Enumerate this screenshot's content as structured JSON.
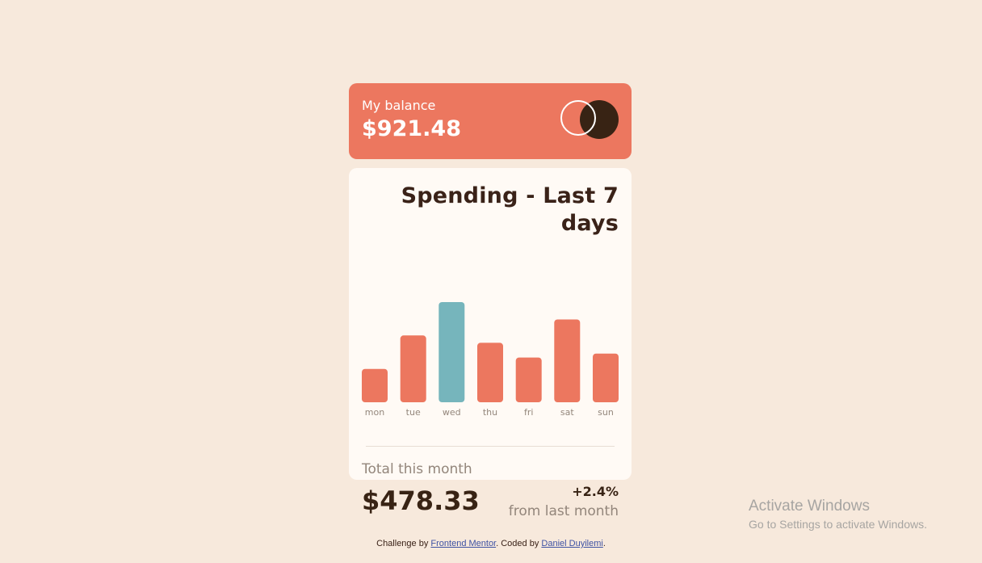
{
  "balance": {
    "label": "My balance",
    "amount": "$921.48",
    "logo": "two-circles-logo"
  },
  "spending": {
    "title": "Spending - Last 7 days",
    "total_label": "Total this month",
    "total_amount": "$478.33",
    "change_percent": "+2.4%",
    "change_label": "from last month"
  },
  "chart_data": {
    "type": "bar",
    "categories": [
      "mon",
      "tue",
      "wed",
      "thu",
      "fri",
      "sat",
      "sun"
    ],
    "values": [
      17.45,
      34.91,
      52.36,
      31.07,
      23.39,
      43.28,
      25.48
    ],
    "highlight_index": 2,
    "colors": {
      "bar": "#ec775f",
      "highlight": "#76b5bc"
    }
  },
  "attribution": {
    "prefix": "Challenge by ",
    "link1": "Frontend Mentor",
    "middle": ". Coded by ",
    "link2": "Daniel Duyilemi",
    "suffix": "."
  },
  "watermark": {
    "line1": "Activate Windows",
    "line2": "Go to Settings to activate Windows."
  },
  "colors": {
    "background": "#f7e9dc",
    "card": "#fffaf5",
    "accent": "#ec775f",
    "dark": "#382314",
    "muted": "#93867b"
  }
}
